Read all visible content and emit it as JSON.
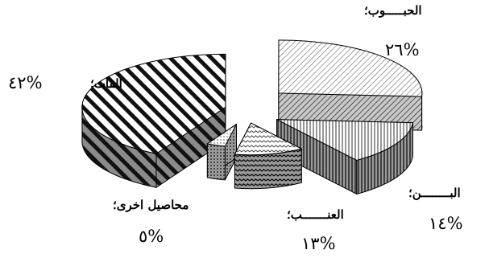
{
  "chart_data": {
    "type": "pie",
    "title": "",
    "style": "3d-exploded",
    "legend": "none",
    "slices": [
      {
        "category": "الحبـــــوب",
        "value": 26,
        "label_name": "الحبـــــوب؛",
        "label_value": "%٢٦",
        "color": "#ffffff"
      },
      {
        "category": "البــــــــن",
        "value": 14,
        "label_name": "البــــــــن؛",
        "label_value": "%١٤",
        "color": "#ffffff"
      },
      {
        "category": "العنـــــــب",
        "value": 13,
        "label_name": "العنـــــــب؛",
        "label_value": "%١٣",
        "color": "#ffffff"
      },
      {
        "category": "محاصيل اخرى",
        "value": 5,
        "label_name": "محاصيل اخرى؛",
        "label_value": "%٥",
        "color": "#ffffff"
      },
      {
        "category": "القات",
        "value": 42,
        "label_name": "القات؛",
        "label_value": "%٤٢",
        "color": "#ffffff"
      }
    ]
  }
}
